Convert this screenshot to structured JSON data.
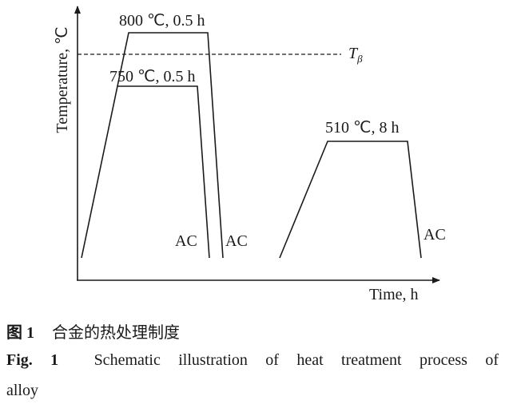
{
  "diagram": {
    "y_axis_label": "Temperature, ℃",
    "x_axis_label": "Time, h",
    "reference_line": {
      "symbol": "T",
      "subscript": "β",
      "style": "dashed"
    },
    "stages": [
      {
        "label": "800 ℃, 0.5 h",
        "cooling": "AC"
      },
      {
        "label": "750 ℃, 0.5 h",
        "cooling": "AC"
      },
      {
        "label": "510 ℃, 8 h",
        "cooling": "AC"
      }
    ]
  },
  "caption": {
    "cn_label": "图 1",
    "cn_text": "合金的热处理制度",
    "en_label": "Fig. 1",
    "en_text": "Schematic illustration of heat treatment process of",
    "en_text_cont": "alloy"
  }
}
